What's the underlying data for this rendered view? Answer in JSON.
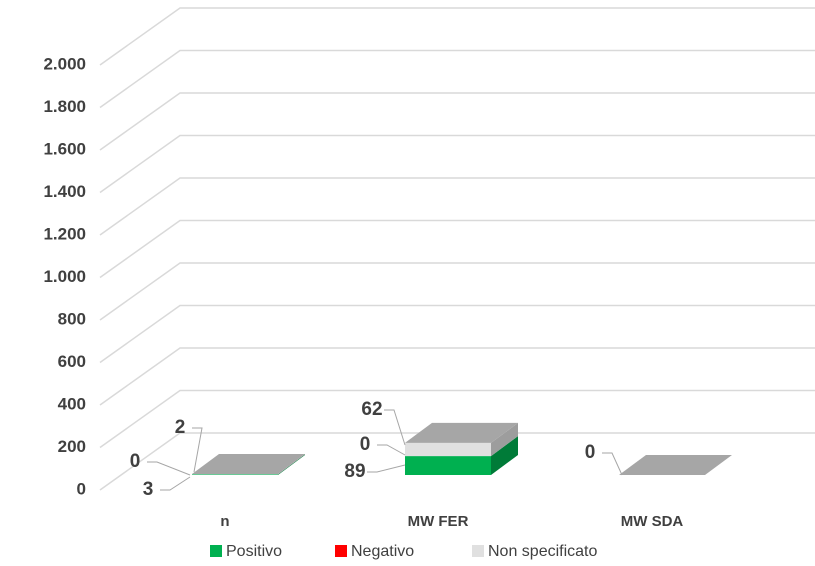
{
  "chart_data": {
    "type": "bar3d_stacked",
    "categories": [
      "n",
      "MW FER",
      "MW SDA"
    ],
    "series": [
      {
        "name": "Positivo",
        "color": "#00b050",
        "values": [
          3,
          89,
          0
        ]
      },
      {
        "name": "Negativo",
        "color": "#ff0000",
        "values": [
          0,
          0,
          null
        ]
      },
      {
        "name": "Non specificato",
        "color": "#e0e0e0",
        "values": [
          2,
          62,
          null
        ]
      }
    ],
    "ylim": [
      0,
      2000
    ],
    "yticks": [
      0,
      200,
      400,
      600,
      800,
      {
        "value": 1000,
        "label": "1.000"
      },
      {
        "value": 1200,
        "label": "1.200"
      },
      {
        "value": 1400,
        "label": "1.400"
      },
      {
        "value": 1600,
        "label": "1.600"
      },
      {
        "value": 1800,
        "label": "1.800"
      },
      {
        "value": 2000,
        "label": "2.000"
      }
    ],
    "grid": true,
    "legend": "bottom"
  }
}
